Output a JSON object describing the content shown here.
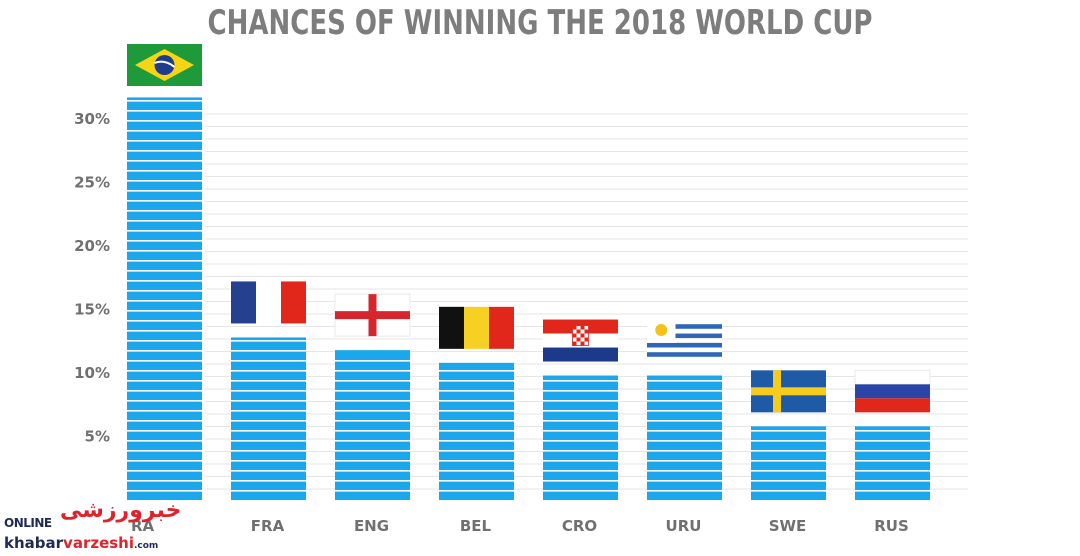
{
  "chart_data": {
    "type": "bar",
    "title": "CHANCES OF WINNING THE 2018 WORLD CUP",
    "xlabel": "",
    "ylabel": "",
    "categories": [
      "BRA",
      "FRA",
      "ENG",
      "BEL",
      "CRO",
      "URU",
      "SWE",
      "RUS"
    ],
    "visible_category_labels": [
      "RA",
      "FRA",
      "ENG",
      "BEL",
      "CRO",
      "URU",
      "SWE",
      "RUS"
    ],
    "values": [
      31.7,
      12.8,
      11.8,
      10.8,
      9.8,
      9.8,
      5.8,
      5.8
    ],
    "yticks": [
      "5%",
      "10%",
      "15%",
      "20%",
      "25%",
      "30%"
    ],
    "ytick_values": [
      5,
      10,
      15,
      20,
      25,
      30
    ],
    "ylim": [
      0,
      32
    ],
    "grid": true,
    "legend": "none",
    "bar_color": "#1aa7ec",
    "flags": [
      "brazil-flag",
      "france-flag",
      "england-flag",
      "belgium-flag",
      "croatia-flag",
      "uruguay-flag",
      "sweden-flag",
      "russia-flag"
    ]
  },
  "colors": {
    "title": "#7d7d7d",
    "tick_text": "#707070",
    "grid": "#e6e6e6",
    "bar": "#1aa7ec",
    "bar_stripe": "#ffffff"
  },
  "watermark": {
    "brand_latin": "ONLINE",
    "brand_persian": "خبرورزشی",
    "domain_a": "khabar",
    "domain_b": "varzeshi",
    "domain_c": ".com"
  }
}
